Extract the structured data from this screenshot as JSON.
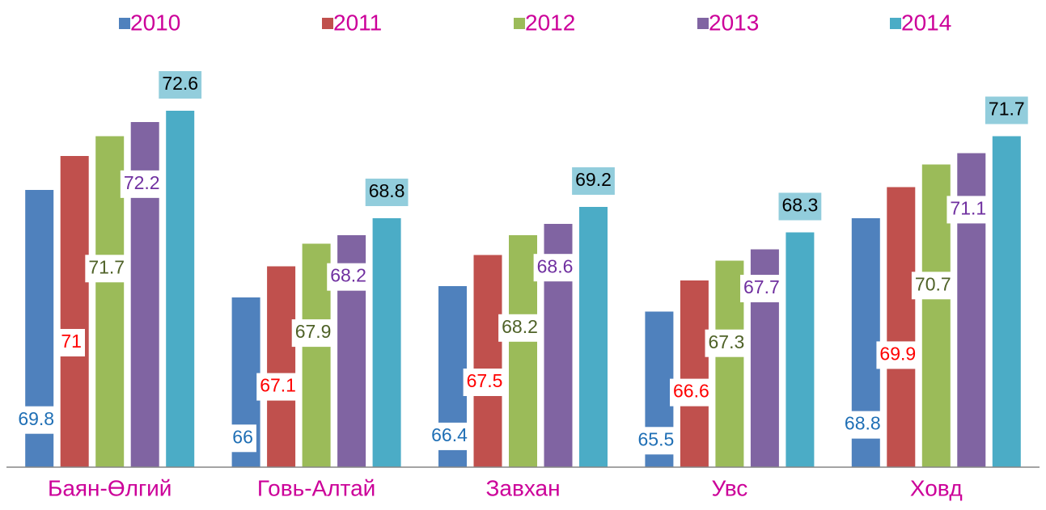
{
  "chart_data": {
    "type": "bar",
    "categories": [
      "Баян-Өлгий",
      "Говь-Алтай",
      "Завхан",
      "Увс",
      "Ховд"
    ],
    "series": [
      {
        "name": "2010",
        "color": "#4f81bd",
        "label_color": "#1f6fb5",
        "values": [
          69.8,
          66,
          66.4,
          65.5,
          68.8
        ]
      },
      {
        "name": "2011",
        "color": "#c0504d",
        "label_color": "#ff0000",
        "values": [
          71,
          67.1,
          67.5,
          66.6,
          69.9
        ]
      },
      {
        "name": "2012",
        "color": "#9bbb59",
        "label_color": "#4f6228",
        "values": [
          71.7,
          67.9,
          68.2,
          67.3,
          70.7
        ]
      },
      {
        "name": "2013",
        "color": "#8064a2",
        "label_color": "#7030a0",
        "values": [
          72.2,
          68.2,
          68.6,
          67.7,
          71.1
        ]
      },
      {
        "name": "2014",
        "color": "#4bacc6",
        "label_color": "#000000",
        "label_background": "#92cddc",
        "values": [
          72.6,
          68.8,
          69.2,
          68.3,
          71.7
        ]
      }
    ],
    "ylim": [
      60,
      74
    ],
    "legend": "top"
  }
}
